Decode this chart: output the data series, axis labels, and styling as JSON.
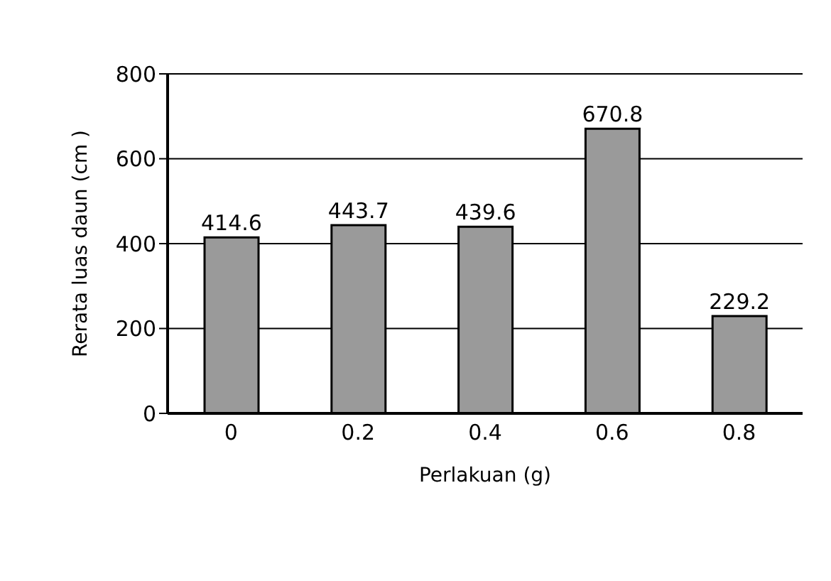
{
  "chart_data": {
    "type": "bar",
    "xlabel": "Perlakuan (g)",
    "ylabel": "Rerata luas daun (cm )",
    "categories": [
      "0",
      "0.2",
      "0.4",
      "0.6",
      "0.8"
    ],
    "values": [
      414.6,
      443.7,
      439.6,
      670.8,
      229.2
    ],
    "color": "#9a9a9a",
    "ylim": [
      0,
      800
    ],
    "yticks": [
      0,
      200,
      400,
      600,
      800
    ],
    "grid": "y",
    "data_labels": true
  }
}
